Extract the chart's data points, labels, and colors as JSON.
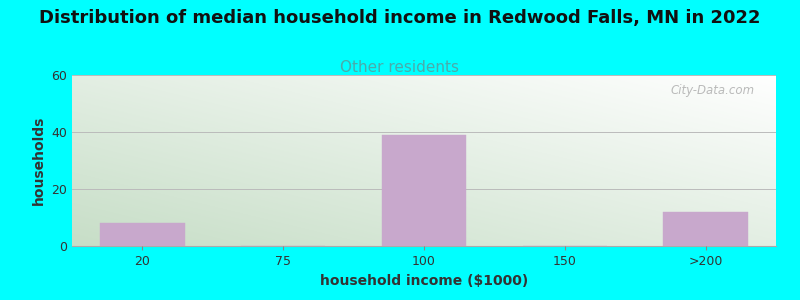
{
  "title": "Distribution of median household income in Redwood Falls, MN in 2022",
  "subtitle": "Other residents",
  "xlabel": "household income ($1000)",
  "ylabel": "households",
  "categories": [
    "20",
    "75",
    "100",
    "150",
    ">200"
  ],
  "values": [
    8,
    0,
    39,
    0,
    12
  ],
  "bar_color": "#C8A8CC",
  "bar_edgecolor": "#C8A8CC",
  "background_color": "#00FFFF",
  "plot_bg_top_right": "#FFFFFF",
  "plot_bg_bottom_left": "#C8DCC8",
  "ylim": [
    0,
    60
  ],
  "yticks": [
    0,
    20,
    40,
    60
  ],
  "title_fontsize": 13,
  "subtitle_fontsize": 11,
  "subtitle_color": "#4AABAB",
  "axis_label_fontsize": 10,
  "tick_fontsize": 9,
  "watermark": "City-Data.com"
}
